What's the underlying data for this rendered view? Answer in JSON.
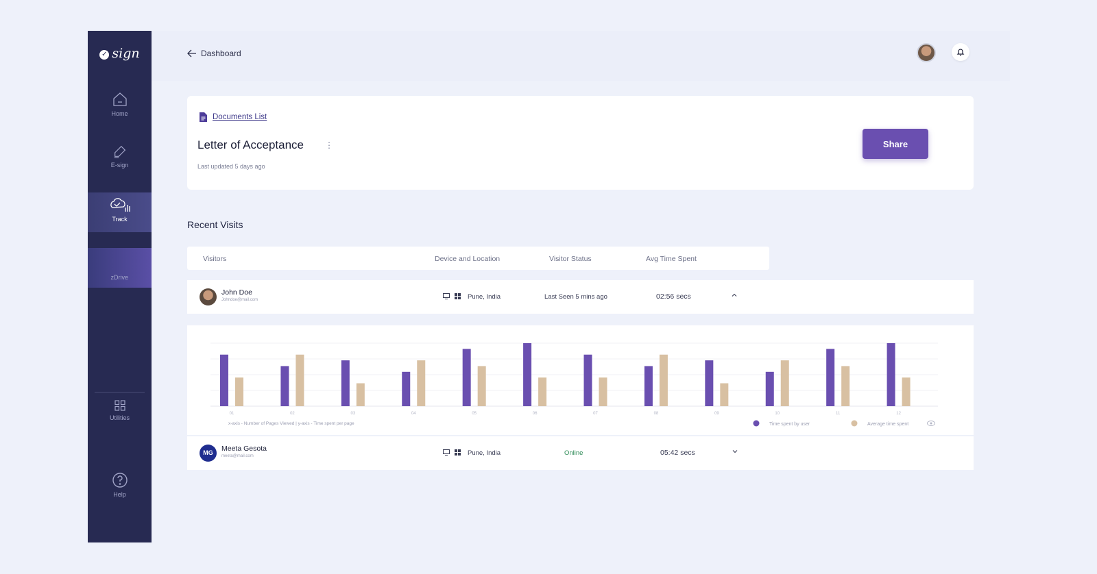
{
  "app": {
    "logo_text": "sign"
  },
  "sidebar": {
    "items": [
      {
        "label": "Home",
        "icon": "home-icon"
      },
      {
        "label": "E-sign",
        "icon": "pen-icon"
      },
      {
        "label": "Track",
        "icon": "cloud-chart-icon",
        "active": true
      },
      {
        "label": "zDrive",
        "icon": ""
      },
      {
        "label": "Utilities",
        "icon": "grid-icon"
      },
      {
        "label": "Help",
        "icon": "help-icon"
      }
    ]
  },
  "header": {
    "back_label": "Dashboard",
    "icons": [
      "avatar",
      "bell-icon"
    ]
  },
  "document": {
    "breadcrumb": "Documents List",
    "title": "Letter of Acceptance",
    "updated": "Last updated 5 days ago",
    "share_label": "Share"
  },
  "recent_visits": {
    "title": "Recent Visits",
    "columns": [
      "Visitors",
      "Device and Location",
      "Visitor Status",
      "Avg Time Spent"
    ],
    "rows": [
      {
        "initials": "",
        "name": "John Doe",
        "email": "Johndoe@mail.com",
        "location": "Pune, India",
        "status": "Last Seen 5 mins ago",
        "time": "02:56 secs",
        "expanded": true
      },
      {
        "initials": "MG",
        "name": "Meeta Gesota",
        "email": "meeta@mail.com",
        "location": "Pune, India",
        "status": "Online",
        "time": "05:42 secs",
        "expanded": false
      }
    ]
  },
  "chart_data": {
    "type": "bar",
    "categories": [
      "01",
      "02",
      "03",
      "04",
      "05",
      "06",
      "07",
      "08",
      "09",
      "10",
      "11",
      "12"
    ],
    "series": [
      {
        "name": "Time spent by user",
        "color": "#6a4fb0",
        "values": [
          9,
          7,
          8,
          6,
          10,
          11,
          9,
          7,
          8,
          6,
          10,
          11
        ]
      },
      {
        "name": "Average time spent",
        "color": "#d8c0a2",
        "values": [
          5,
          9,
          4,
          8,
          7,
          5,
          5,
          9,
          4,
          8,
          7,
          5
        ]
      }
    ],
    "ylim": [
      0,
      11
    ],
    "axis_note": "x-axis - Number of Pages Viewed | y-axis - Time spent per page",
    "grid": true,
    "legend_position": "bottom-right",
    "colors": {
      "accent": "#6a4fb0",
      "sidebar": "#272a52",
      "online": "#2e8b57"
    }
  }
}
